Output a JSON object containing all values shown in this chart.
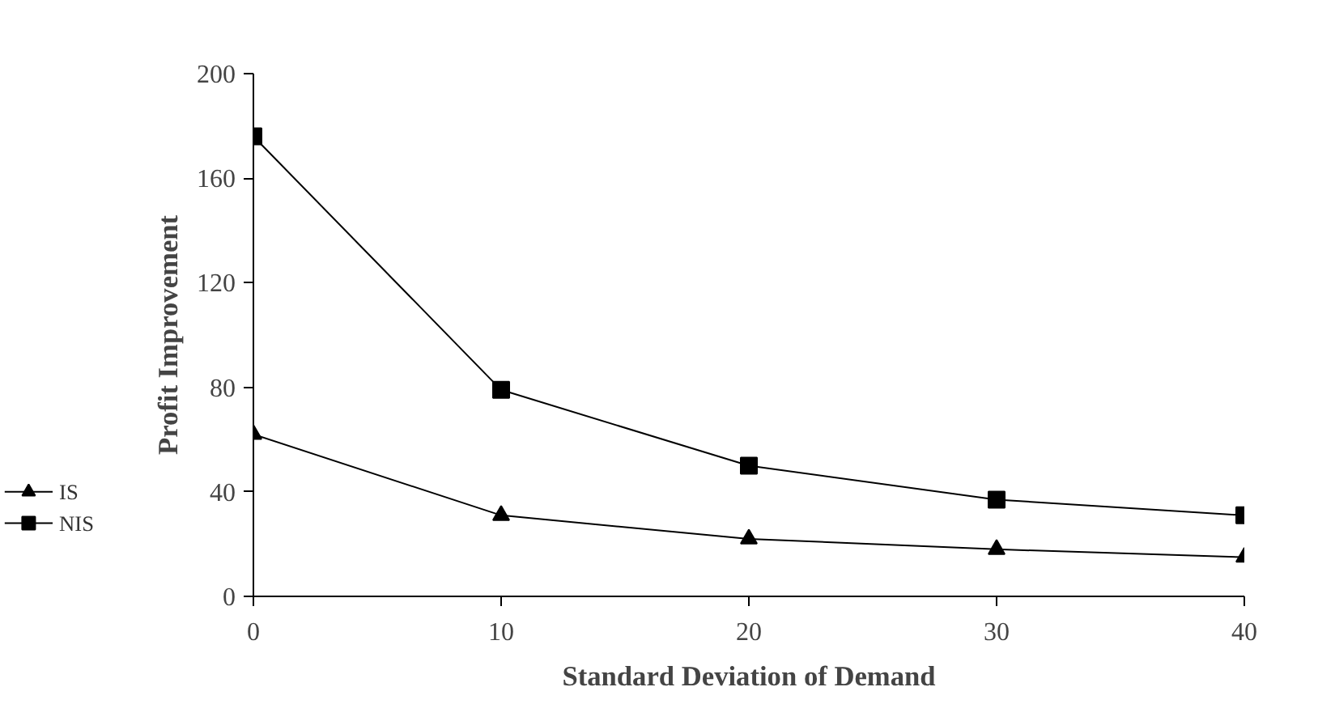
{
  "chart_data": {
    "type": "line",
    "xlabel": "Standard Deviation of Demand",
    "ylabel": "Profit Improvement",
    "x": [
      0,
      10,
      20,
      30,
      40
    ],
    "series": [
      {
        "name": "IS",
        "color": "#000000",
        "marker": "triangle",
        "values": [
          62,
          31,
          22,
          18,
          15
        ]
      },
      {
        "name": "NIS",
        "color": "#000000",
        "marker": "square",
        "values": [
          176,
          79,
          50,
          37,
          31
        ]
      }
    ],
    "xlim": [
      0,
      40
    ],
    "ylim": [
      0,
      200
    ],
    "xticks": [
      0,
      10,
      20,
      30,
      40
    ],
    "yticks": [
      0,
      40,
      80,
      120,
      160,
      200
    ],
    "grid": false,
    "legend": "bottom left",
    "line_style": "solid"
  }
}
